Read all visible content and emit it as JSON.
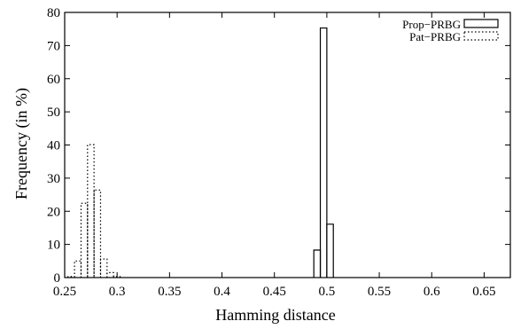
{
  "chart_data": {
    "type": "bar",
    "xlabel": "Hamming distance",
    "ylabel": "Frequency (in %)",
    "xlim": [
      0.25,
      0.675
    ],
    "ylim": [
      0,
      80
    ],
    "x_ticks": [
      0.25,
      0.3,
      0.35,
      0.4,
      0.45,
      0.5,
      0.55,
      0.6,
      0.65
    ],
    "x_tick_labels": [
      "0.25",
      "0.3",
      "0.35",
      "0.4",
      "0.45",
      "0.5",
      "0.55",
      "0.6",
      "0.65"
    ],
    "y_ticks": [
      0,
      10,
      20,
      30,
      40,
      50,
      60,
      70,
      80
    ],
    "y_tick_labels": [
      "0",
      "10",
      "20",
      "30",
      "40",
      "50",
      "60",
      "70",
      "80"
    ],
    "bin_width": 0.0062,
    "grid": false,
    "legend_position": "top-right",
    "series": [
      {
        "name": "Prop−PRBG",
        "style": "solid",
        "x": [
          0.4907,
          0.4969,
          0.5031
        ],
        "values": [
          8.3,
          75.3,
          16.1
        ]
      },
      {
        "name": "Pat−PRBG",
        "style": "dotted",
        "x": [
          0.2563,
          0.2625,
          0.2687,
          0.2749,
          0.2811,
          0.2873,
          0.2935,
          0.2997
        ],
        "values": [
          0.3,
          5.0,
          22.4,
          40.1,
          26.4,
          5.6,
          1.5,
          0.3
        ]
      }
    ]
  }
}
